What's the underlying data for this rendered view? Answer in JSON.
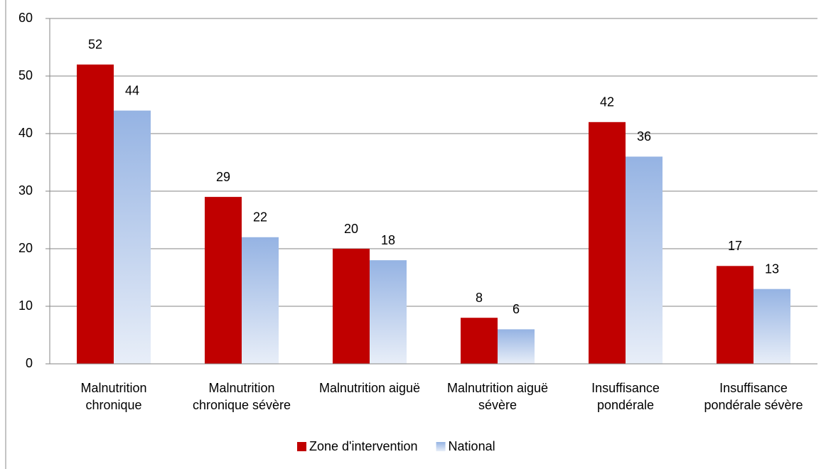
{
  "chart_data": {
    "type": "bar",
    "categories": [
      "Malnutrition chronique",
      "Malnutrition chronique sévère",
      "Malnutrition aiguë",
      "Malnutrition aiguë sévère",
      "Insuffisance pondérale",
      "Insuffisance pondérale sévère"
    ],
    "series": [
      {
        "name": "Zone d'intervention",
        "color": "#c00000",
        "values": [
          52,
          29,
          20,
          8,
          42,
          17
        ]
      },
      {
        "name": "National",
        "color": "#95b3e3",
        "values": [
          44,
          22,
          18,
          6,
          36,
          13
        ]
      }
    ],
    "ylim": [
      0,
      60
    ],
    "yticks": [
      0,
      10,
      20,
      30,
      40,
      50,
      60
    ],
    "grid": true,
    "legend": "bottom"
  }
}
